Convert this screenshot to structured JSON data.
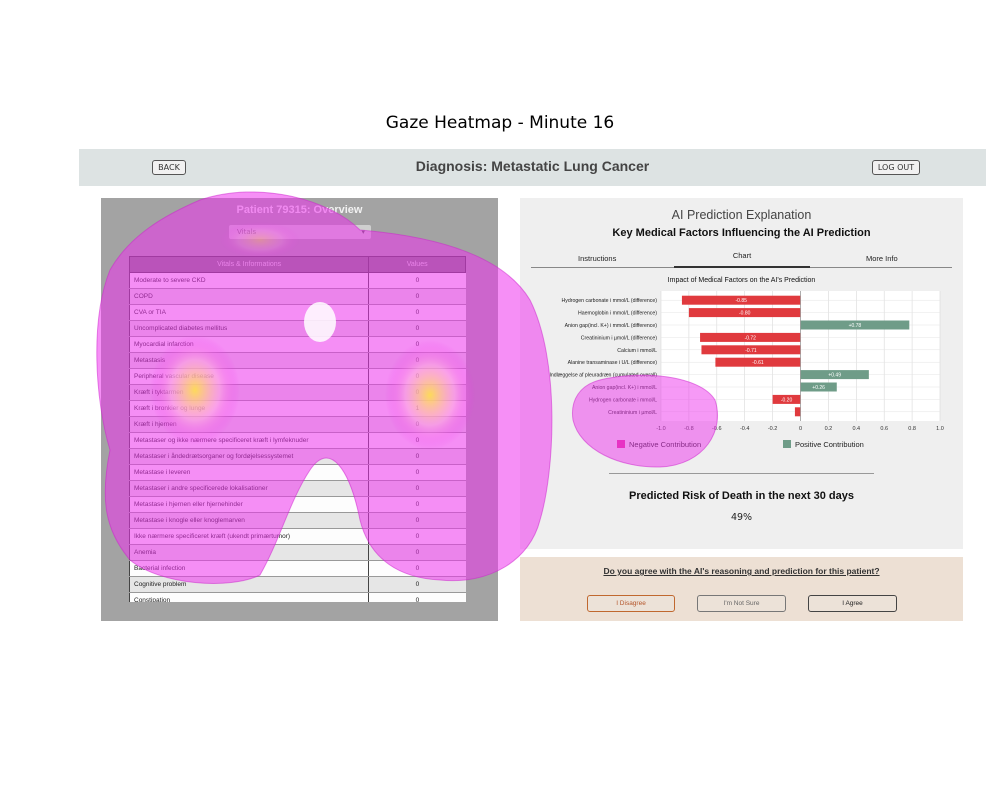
{
  "figure_title": "Gaze Heatmap - Minute 16",
  "header": {
    "back_label": "BACK",
    "title": "Diagnosis: Metastatic Lung Cancer",
    "logout_label": "LOG OUT"
  },
  "patient_panel": {
    "title": "Patient 79315: Overview",
    "selector_value": "Vitals",
    "selector_icon": "chevron-down-icon",
    "columns": [
      "Vitals & Informations",
      "Values"
    ],
    "rows": [
      [
        "Moderate to severe CKD",
        "0"
      ],
      [
        "COPD",
        "0"
      ],
      [
        "CVA or TIA",
        "0"
      ],
      [
        "Uncomplicated diabetes mellitus",
        "0"
      ],
      [
        "Myocardial infarction",
        "0"
      ],
      [
        "Metastasis",
        "0"
      ],
      [
        "Peripheral vascular disease",
        "0"
      ],
      [
        "Kræft i tyktarmen",
        "0"
      ],
      [
        "Kræft i bronkier og lunge",
        "1"
      ],
      [
        "Kræft i hjernen",
        "0"
      ],
      [
        "Metastaser og ikke nærmere specificeret kræft i lymfeknuder",
        "0"
      ],
      [
        "Metastaser i åndedrætsorganer og fordøjelsessystemet",
        "0"
      ],
      [
        "Metastase i leveren",
        "0"
      ],
      [
        "Metastaser i andre specificerede lokalisationer",
        "0"
      ],
      [
        "Metastase i hjernen eller hjernehinder",
        "0"
      ],
      [
        "Metastase i knogle eller knoglemarven",
        "0"
      ],
      [
        "Ikke nærmere specificeret kræft (ukendt primærtumor)",
        "0"
      ],
      [
        "Anemia",
        "0"
      ],
      [
        "Bacterial infection",
        "0"
      ],
      [
        "Cognitive problem",
        "0"
      ],
      [
        "Constipation",
        "0"
      ]
    ]
  },
  "explanation": {
    "title": "AI Prediction Explanation",
    "subtitle": "Key Medical Factors Influencing the AI Prediction",
    "tabs": [
      "Instructions",
      "Chart",
      "More Info"
    ],
    "active_tab": "Chart",
    "legend_negative": "Negative Contribution",
    "legend_positive": "Positive Contribution",
    "risk_title": "Predicted Risk of Death in the next 30 days",
    "risk_value": "49%"
  },
  "chart_data": {
    "type": "bar",
    "orientation": "horizontal",
    "title": "Impact of Medical Factors on the AI's Prediction",
    "categories": [
      "Hydrogen carbonate i mmol/L (difference)",
      "Haemoglobin i mmol/L (difference)",
      "Anion gap(incl. K+) i mmol/L (difference)",
      "Creatininium i µmol/L (difference)",
      "Calcium i mmol/L",
      "Alanine transaminase i U/L (difference)",
      "Indlæggelse af pleuradræn (cumulated overall)",
      "Anion gap(incl. K+) i mmol/L",
      "Hydrogen carbonate i mmol/L",
      "Creatininium i µmol/L"
    ],
    "values": [
      -0.85,
      -0.8,
      0.78,
      -0.72,
      -0.71,
      -0.61,
      0.49,
      0.26,
      -0.2,
      -0.04
    ],
    "value_labels": [
      "-0.85",
      "-0.80",
      "+0.78",
      "-0.72",
      "-0.71",
      "-0.61",
      "+0.49",
      "+0.26",
      "-0.20",
      ""
    ],
    "xlim": [
      -1.0,
      1.0
    ],
    "xticks": [
      "-1.0",
      "-0.8",
      "-0.6",
      "-0.4",
      "-0.2",
      "0",
      "0.2",
      "0.4",
      "0.6",
      "0.8",
      "1.0"
    ],
    "grid": true,
    "colors": {
      "negative": "#e03a3e",
      "positive": "#6f9c88"
    }
  },
  "agreement": {
    "question": "Do you agree with the AI's reasoning and prediction for this patient?",
    "disagree_label": "I Disagree",
    "not_sure_label": "I'm Not Sure",
    "agree_label": "I Agree"
  },
  "colors": {
    "heat_magenta": "#ee22ee",
    "heat_yellow": "#ffe34a"
  }
}
